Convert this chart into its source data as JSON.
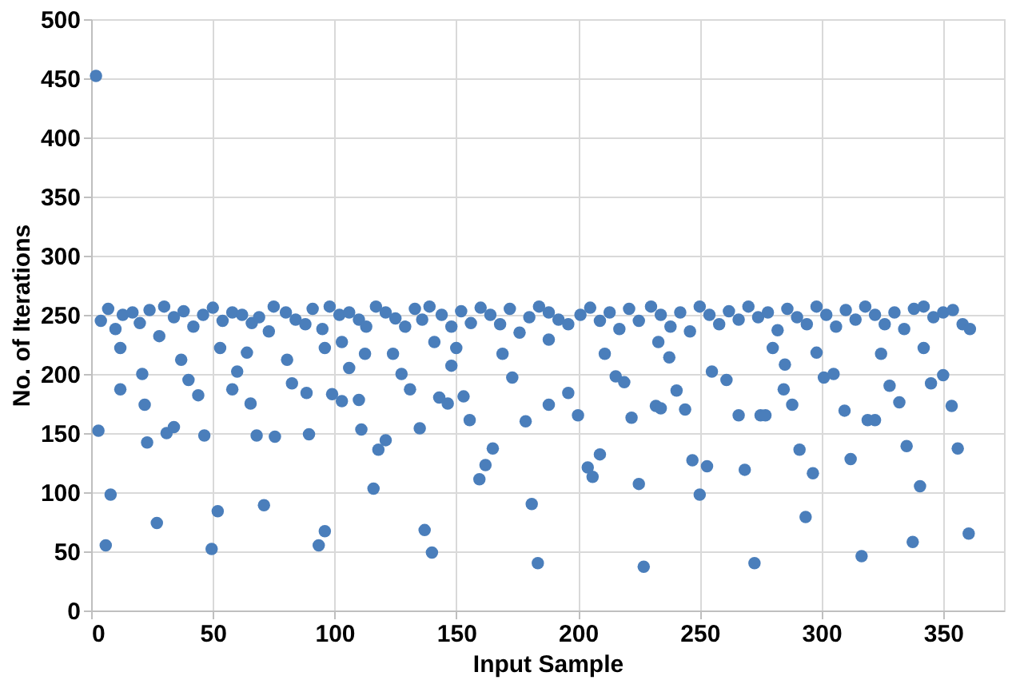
{
  "chart_data": {
    "type": "scatter",
    "xlabel": "Input Sample",
    "ylabel": "No. of Iterations",
    "x": [
      2,
      3,
      6,
      8,
      27,
      49.5,
      52,
      71,
      93.5,
      96,
      23,
      31,
      34,
      46.5,
      68,
      75.5,
      89.5,
      111,
      116,
      118,
      121,
      12,
      21,
      22,
      12,
      37,
      44,
      40,
      60,
      58,
      65.5,
      64,
      53,
      80.5,
      82.5,
      88.5,
      96,
      99,
      103,
      103,
      106,
      110,
      112.5,
      124,
      127.5,
      131,
      135,
      137,
      140,
      141,
      143,
      146.5,
      148,
      150,
      153,
      155.5,
      159.5,
      162,
      165,
      169,
      173,
      178.5,
      181,
      183.5,
      188,
      188,
      196,
      200,
      204,
      206,
      209,
      211,
      215.5,
      219,
      222,
      225,
      227,
      232,
      233,
      234,
      237.5,
      240.5,
      244,
      247,
      250,
      253,
      255,
      261,
      266,
      268.5,
      272.5,
      275,
      277,
      280,
      284.5,
      285,
      288,
      291,
      293.5,
      296.5,
      298,
      301,
      305,
      309.5,
      312,
      316.5,
      319,
      322,
      324.5,
      328,
      332,
      335,
      337.5,
      340.5,
      342,
      345,
      350,
      353.5,
      356,
      360.5,
      4,
      7,
      10,
      13,
      17,
      20,
      24,
      28,
      30,
      34,
      38,
      42,
      46,
      50,
      54,
      58,
      62,
      66,
      69,
      73,
      75,
      80,
      84,
      88,
      91,
      95,
      98,
      102,
      106,
      110,
      113,
      117,
      121,
      125,
      129,
      133,
      136,
      139,
      144,
      148,
      152,
      156,
      160,
      164,
      168,
      172,
      176,
      180,
      184,
      188,
      192,
      196,
      201,
      205,
      209,
      213,
      217,
      221,
      225,
      230,
      234,
      238,
      242,
      246,
      250,
      254,
      258,
      262,
      266,
      270,
      274,
      278,
      282,
      286,
      290,
      294,
      298,
      302,
      306,
      310,
      314,
      318,
      322,
      326,
      330,
      334,
      338,
      342,
      346,
      350,
      354,
      358,
      361
    ],
    "values": [
      452,
      152,
      55,
      98,
      74,
      52,
      84,
      89,
      55,
      67,
      142,
      150,
      155,
      148,
      148,
      147,
      149,
      153,
      103,
      136,
      144,
      187,
      200,
      174,
      222,
      212,
      182,
      195,
      202,
      187,
      175,
      218,
      222,
      212,
      192,
      184,
      222,
      183,
      177,
      227,
      205,
      178,
      217,
      217,
      200,
      187,
      154,
      68,
      49,
      227,
      180,
      175,
      207,
      222,
      181,
      161,
      111,
      123,
      137,
      217,
      197,
      160,
      90,
      40,
      174,
      229,
      184,
      165,
      121,
      113,
      132,
      217,
      198,
      193,
      163,
      107,
      37,
      173,
      227,
      171,
      214,
      186,
      170,
      127,
      98,
      122,
      202,
      195,
      165,
      119,
      40,
      165,
      165,
      222,
      187,
      208,
      174,
      136,
      79,
      116,
      218,
      197,
      200,
      169,
      128,
      46,
      161,
      161,
      217,
      190,
      176,
      139,
      58,
      105,
      222,
      192,
      199,
      173,
      137,
      65,
      245,
      255,
      238,
      250,
      252,
      243,
      254,
      232,
      257,
      248,
      253,
      240,
      250,
      256,
      245,
      252,
      250,
      243,
      248,
      236,
      257,
      252,
      246,
      242,
      255,
      238,
      257,
      250,
      252,
      246,
      240,
      257,
      252,
      247,
      240,
      255,
      246,
      257,
      250,
      240,
      253,
      243,
      256,
      250,
      242,
      255,
      235,
      248,
      257,
      252,
      246,
      242,
      250,
      256,
      245,
      252,
      238,
      255,
      245,
      257,
      250,
      240,
      252,
      236,
      257,
      250,
      242,
      253,
      246,
      257,
      248,
      252,
      237,
      255,
      248,
      242,
      257,
      250,
      240,
      254,
      246,
      257,
      250,
      242,
      252,
      238,
      255,
      257,
      248,
      252,
      254,
      242,
      238
    ],
    "color": "#4a7ebb",
    "marker": "circle",
    "xlim": [
      0,
      375
    ],
    "xticks": [
      0,
      50,
      100,
      150,
      200,
      250,
      300,
      350
    ],
    "ylim": [
      0,
      500
    ],
    "yticks": [
      0,
      50,
      100,
      150,
      200,
      250,
      300,
      350,
      400,
      450,
      500
    ],
    "grid": true
  }
}
